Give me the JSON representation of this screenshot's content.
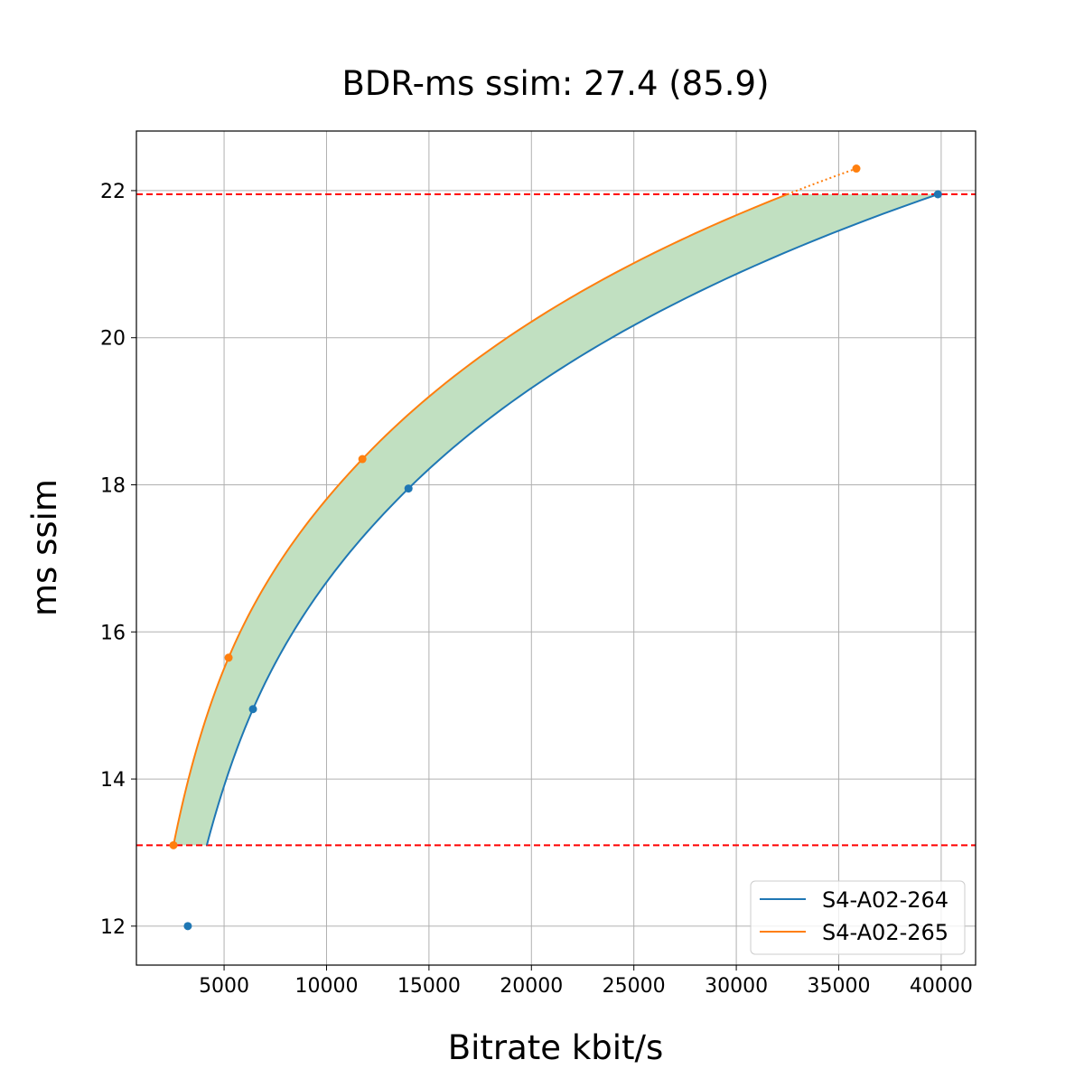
{
  "chart_data": {
    "type": "line",
    "title": "BDR-ms ssim: 27.4 (85.9)",
    "xlabel": "Bitrate kbit/s",
    "ylabel": "ms ssim",
    "xlim": [
      720,
      41680
    ],
    "ylim": [
      11.47,
      22.81
    ],
    "xticks": [
      5000,
      10000,
      15000,
      20000,
      25000,
      30000,
      35000,
      40000
    ],
    "yticks": [
      12,
      14,
      16,
      18,
      20,
      22
    ],
    "grid": true,
    "legend_placement": "lower-right",
    "series": [
      {
        "name": "S4-A02-264",
        "color": "#1f77b4",
        "points": [
          [
            3230,
            12.0
          ],
          [
            6410,
            14.95
          ],
          [
            14000,
            17.95
          ],
          [
            39840,
            21.95
          ]
        ]
      },
      {
        "name": "S4-A02-265",
        "color": "#ff7f0e",
        "points": [
          [
            2530,
            13.1
          ],
          [
            5220,
            15.65
          ],
          [
            11750,
            18.35
          ],
          [
            35860,
            22.3
          ]
        ]
      }
    ],
    "reference_lines": [
      {
        "axis": "y",
        "value": 21.95,
        "color": "#ff0000",
        "style": "dashed"
      },
      {
        "axis": "y",
        "value": 13.1,
        "color": "#ff0000",
        "style": "dashed"
      }
    ],
    "fill_between": {
      "color": "#c1e0c1",
      "y_range": [
        13.1,
        21.95
      ]
    }
  }
}
